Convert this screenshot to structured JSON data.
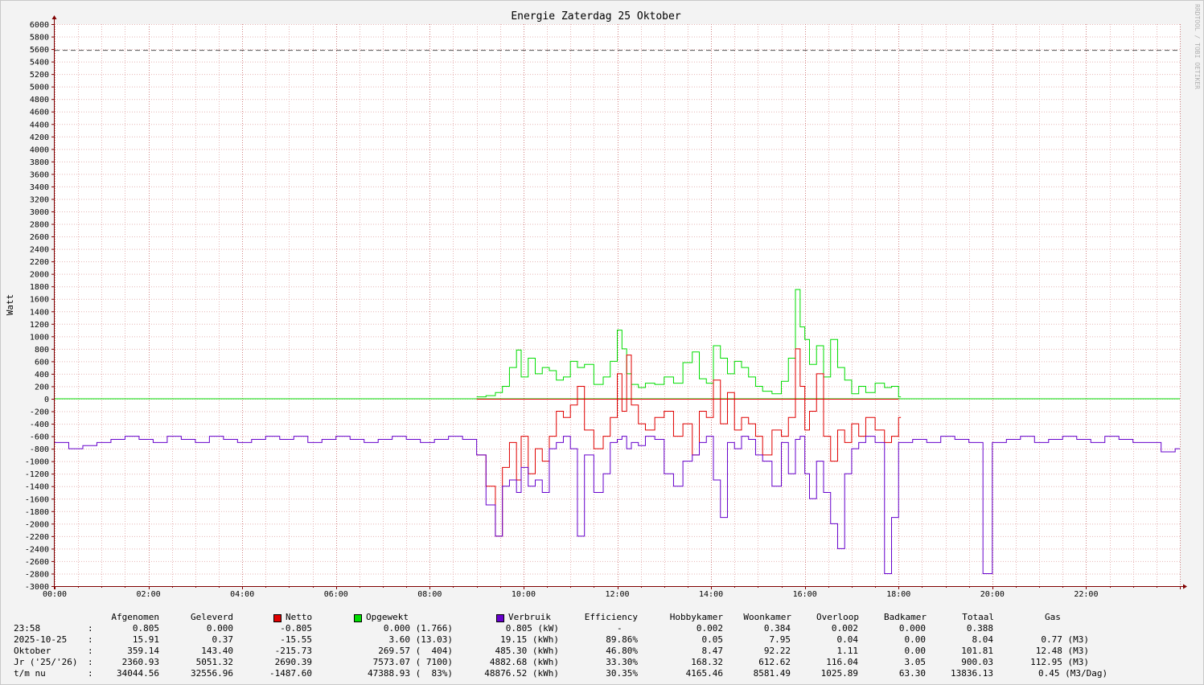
{
  "title": "Energie Zaterdag  25 Oktober",
  "ylabel": "Watt",
  "watermark": "RRDTOOL / TOBI OETIKER",
  "colors": {
    "netto": "#e00000",
    "opgewekt": "#00dd00",
    "verbruik": "#6600cc",
    "grid_minor": "#e6b4b4",
    "grid_major": "#d08080",
    "limit": "#555555",
    "axis": "#800000"
  },
  "chart_data": {
    "type": "line",
    "title": "Energie Zaterdag  25 Oktober",
    "ylabel": "Watt",
    "xlabel": "",
    "ylim": [
      -3000,
      6000
    ],
    "xlim_hours": [
      0,
      24
    ],
    "y_ticks": [
      "6000",
      "5800",
      "5600",
      "5400",
      "5200",
      "5000",
      "4800",
      "4600",
      "4400",
      "4200",
      "4000",
      "3800",
      "3600",
      "3400",
      "3200",
      "3000",
      "2800",
      "2600",
      "2400",
      "2200",
      "2000",
      "1800",
      "1600",
      "1400",
      "1200",
      "1000",
      "800",
      "600",
      "400",
      "200",
      "0",
      "-200",
      "-400",
      "-600",
      "-800",
      "-1000",
      "-1200",
      "-1400",
      "-1600",
      "-1800",
      "-2000",
      "-2200",
      "-2400",
      "-2600",
      "-2800",
      "-3000"
    ],
    "x_ticks": [
      "00:00",
      "02:00",
      "04:00",
      "06:00",
      "08:00",
      "10:00",
      "12:00",
      "14:00",
      "16:00",
      "18:00",
      "20:00",
      "22:00"
    ],
    "limit_line": 5580,
    "grid": true,
    "series": [
      {
        "name": "Opgewekt",
        "color": "#00dd00",
        "x": [
          9.0,
          9.2,
          9.4,
          9.55,
          9.7,
          9.85,
          9.95,
          10.1,
          10.25,
          10.4,
          10.55,
          10.7,
          10.85,
          11.0,
          11.15,
          11.3,
          11.5,
          11.7,
          11.85,
          12.0,
          12.1,
          12.2,
          12.3,
          12.45,
          12.6,
          12.8,
          13.0,
          13.2,
          13.4,
          13.6,
          13.75,
          13.9,
          14.05,
          14.2,
          14.35,
          14.5,
          14.65,
          14.8,
          14.95,
          15.1,
          15.3,
          15.5,
          15.65,
          15.8,
          15.9,
          16.0,
          16.1,
          16.25,
          16.4,
          16.55,
          16.7,
          16.85,
          17.0,
          17.15,
          17.3,
          17.5,
          17.7,
          17.85,
          18.0
        ],
        "values": [
          30,
          50,
          100,
          200,
          500,
          780,
          350,
          650,
          400,
          500,
          450,
          300,
          350,
          600,
          500,
          550,
          230,
          350,
          600,
          1100,
          800,
          400,
          230,
          180,
          250,
          230,
          350,
          250,
          580,
          750,
          320,
          250,
          850,
          650,
          400,
          600,
          500,
          350,
          200,
          120,
          80,
          280,
          650,
          1750,
          1150,
          950,
          550,
          850,
          350,
          950,
          500,
          300,
          80,
          200,
          100,
          250,
          180,
          200,
          30
        ]
      },
      {
        "name": "Netto",
        "color": "#e00000",
        "x": [
          9.0,
          9.2,
          9.4,
          9.55,
          9.7,
          9.85,
          9.95,
          10.1,
          10.25,
          10.4,
          10.55,
          10.7,
          10.85,
          11.0,
          11.15,
          11.3,
          11.5,
          11.7,
          11.85,
          12.0,
          12.1,
          12.2,
          12.3,
          12.45,
          12.6,
          12.8,
          13.0,
          13.2,
          13.4,
          13.6,
          13.75,
          13.9,
          14.05,
          14.2,
          14.35,
          14.5,
          14.65,
          14.8,
          14.95,
          15.1,
          15.3,
          15.5,
          15.65,
          15.8,
          15.9,
          16.0,
          16.1,
          16.25,
          16.4,
          16.55,
          16.7,
          16.85,
          17.0,
          17.15,
          17.3,
          17.5,
          17.7,
          17.85,
          18.0
        ],
        "values": [
          -900,
          -1400,
          -2200,
          -1100,
          -700,
          -1300,
          -600,
          -1200,
          -800,
          -1000,
          -600,
          -200,
          -300,
          -100,
          200,
          -500,
          -800,
          -600,
          -300,
          400,
          -200,
          700,
          -100,
          -400,
          -500,
          -300,
          -200,
          -600,
          -400,
          -900,
          -200,
          -300,
          300,
          -400,
          100,
          -500,
          -300,
          -400,
          -600,
          -900,
          -500,
          -600,
          -300,
          800,
          200,
          -500,
          -200,
          400,
          -600,
          -1000,
          -500,
          -700,
          -400,
          -600,
          -300,
          -500,
          -700,
          -600,
          -300
        ]
      },
      {
        "name": "Verbruik",
        "color": "#6600cc",
        "x": [
          0.0,
          0.3,
          0.6,
          0.9,
          1.2,
          1.5,
          1.8,
          2.1,
          2.4,
          2.7,
          3.0,
          3.3,
          3.6,
          3.9,
          4.2,
          4.5,
          4.8,
          5.1,
          5.4,
          5.7,
          6.0,
          6.3,
          6.6,
          6.9,
          7.2,
          7.5,
          7.8,
          8.1,
          8.4,
          8.7,
          9.0,
          9.2,
          9.4,
          9.55,
          9.7,
          9.85,
          9.95,
          10.1,
          10.25,
          10.4,
          10.55,
          10.7,
          10.85,
          11.0,
          11.15,
          11.3,
          11.5,
          11.7,
          11.85,
          12.0,
          12.1,
          12.2,
          12.3,
          12.45,
          12.6,
          12.8,
          13.0,
          13.2,
          13.4,
          13.6,
          13.75,
          13.9,
          14.05,
          14.2,
          14.35,
          14.5,
          14.65,
          14.8,
          14.95,
          15.1,
          15.3,
          15.5,
          15.65,
          15.8,
          15.9,
          16.0,
          16.1,
          16.25,
          16.4,
          16.55,
          16.7,
          16.85,
          17.0,
          17.15,
          17.3,
          17.5,
          17.7,
          17.85,
          18.0,
          18.3,
          18.6,
          18.9,
          19.2,
          19.5,
          19.8,
          20.0,
          20.3,
          20.6,
          20.9,
          21.2,
          21.5,
          21.8,
          22.1,
          22.4,
          22.7,
          23.0,
          23.3,
          23.6,
          23.9
        ],
        "values": [
          -700,
          -800,
          -750,
          -700,
          -650,
          -600,
          -650,
          -700,
          -600,
          -650,
          -700,
          -600,
          -650,
          -700,
          -650,
          -600,
          -650,
          -600,
          -700,
          -650,
          -600,
          -650,
          -700,
          -650,
          -600,
          -650,
          -700,
          -650,
          -600,
          -650,
          -900,
          -1700,
          -2200,
          -1400,
          -1300,
          -1500,
          -1100,
          -1400,
          -1300,
          -1500,
          -800,
          -700,
          -600,
          -800,
          -2200,
          -900,
          -1500,
          -1200,
          -700,
          -650,
          -600,
          -800,
          -700,
          -750,
          -600,
          -650,
          -1200,
          -1400,
          -1000,
          -900,
          -700,
          -600,
          -1300,
          -1900,
          -700,
          -800,
          -600,
          -650,
          -900,
          -1000,
          -1400,
          -700,
          -1200,
          -650,
          -600,
          -1200,
          -1600,
          -1000,
          -1500,
          -2000,
          -2400,
          -1200,
          -800,
          -700,
          -600,
          -700,
          -2800,
          -1900,
          -700,
          -650,
          -700,
          -600,
          -650,
          -700,
          -2800,
          -700,
          -650,
          -600,
          -700,
          -650,
          -600,
          -650,
          -700,
          -600,
          -650,
          -700,
          -700,
          -850,
          -800
        ]
      }
    ]
  },
  "legend": {
    "headers": {
      "afgenomen": "Afgenomen",
      "geleverd": "Geleverd",
      "netto": "Netto",
      "opgewekt": "Opgewekt",
      "verbruik": "Verbruik",
      "efficiency": "Efficiency",
      "hobbykamer": "Hobbykamer",
      "woonkamer": "Woonkamer",
      "overloop": "Overloop",
      "badkamer": "Badkamer",
      "totaal": "Totaal",
      "gas": "Gas"
    },
    "rows": [
      {
        "label": "23:58",
        "colon": ":",
        "afgenomen": "0.805",
        "geleverd": "0.000",
        "netto": "-0.805",
        "opgewekt": "0.000 (1.766)",
        "verbruik": "0.805 (kW)",
        "efficiency": "-",
        "hobbykamer": "0.002",
        "woonkamer": "0.384",
        "overloop": "0.002",
        "badkamer": "0.000",
        "totaal": "0.388",
        "gas": ""
      },
      {
        "label": "2025-10-25",
        "colon": ":",
        "afgenomen": "15.91",
        "geleverd": "0.37",
        "netto": "-15.55",
        "opgewekt": "3.60 (13.03)",
        "verbruik": "19.15 (kWh)",
        "efficiency": "89.86%",
        "hobbykamer": "0.05",
        "woonkamer": "7.95",
        "overloop": "0.04",
        "badkamer": "0.00",
        "totaal": "8.04",
        "gas": "0.77 (M3)"
      },
      {
        "label": "Oktober",
        "colon": ":",
        "afgenomen": "359.14",
        "geleverd": "143.40",
        "netto": "-215.73",
        "opgewekt": "269.57 (  404)",
        "verbruik": "485.30 (kWh)",
        "efficiency": "46.80%",
        "hobbykamer": "8.47",
        "woonkamer": "92.22",
        "overloop": "1.11",
        "badkamer": "0.00",
        "totaal": "101.81",
        "gas": "12.48 (M3)"
      },
      {
        "label": "Jr ('25/'26)",
        "colon": ":",
        "afgenomen": "2360.93",
        "geleverd": "5051.32",
        "netto": "2690.39",
        "opgewekt": "7573.07 ( 7100)",
        "verbruik": "4882.68 (kWh)",
        "efficiency": "33.30%",
        "hobbykamer": "168.32",
        "woonkamer": "612.62",
        "overloop": "116.04",
        "badkamer": "3.05",
        "totaal": "900.03",
        "gas": "112.95 (M3)"
      },
      {
        "label": "t/m nu",
        "colon": ":",
        "afgenomen": "34044.56",
        "geleverd": "32556.96",
        "netto": "-1487.60",
        "opgewekt": "47388.93 (  83%)",
        "verbruik": "48876.52 (kWh)",
        "efficiency": "30.35%",
        "hobbykamer": "4165.46",
        "woonkamer": "8581.49",
        "overloop": "1025.89",
        "badkamer": "63.30",
        "totaal": "13836.13",
        "gas": "0.45 (M3/Dag)"
      }
    ]
  }
}
